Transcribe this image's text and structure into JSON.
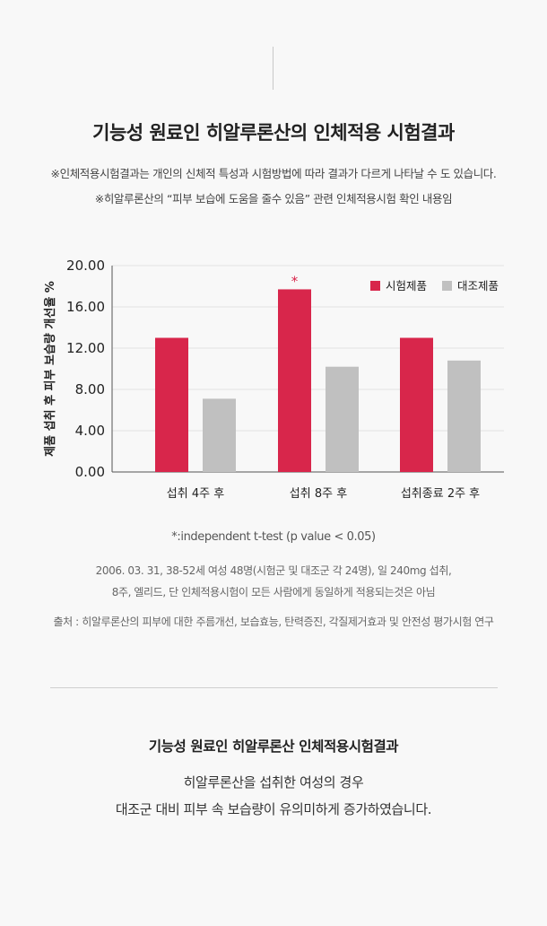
{
  "header": {
    "title": "기능성 원료인 히알루론산의 인체적용 시험결과",
    "note1": "※인체적용시험결과는 개인의 신체적 특성과 시험방법에 따라 결과가 다르게 나타날 수 도 있습니다.",
    "note2": "※히알루론산의 “피부 보습에 도움을 줄수 있음” 관련 인체적용시험 확인 내용임"
  },
  "chart_data": {
    "type": "bar",
    "categories": [
      "섭취 4주 후",
      "섭취 8주 후",
      "섭취종료 2주 후"
    ],
    "series": [
      {
        "name": "시험제품",
        "values": [
          13.0,
          17.7,
          13.0
        ],
        "color": "#d8264b"
      },
      {
        "name": "대조제품",
        "values": [
          7.1,
          10.2,
          10.8
        ],
        "color": "#c0c0c0"
      }
    ],
    "ylabel": "제품 섭취 후 피부 보습량 개선율 %",
    "xlabel": "",
    "ylim": [
      0,
      20
    ],
    "yticks": [
      "0.00",
      "4.00",
      "8.00",
      "12.00",
      "16.00",
      "20.00"
    ],
    "ytick_values": [
      0,
      4,
      8,
      12,
      16,
      20
    ],
    "grid": true,
    "legend_position": "top-right",
    "annotations": [
      {
        "category": "섭취 8주 후",
        "series": "시험제품",
        "text": "*",
        "color": "#d8264b"
      }
    ]
  },
  "footnotes": {
    "ttest": "*:independent t-test (p value < 0.05)",
    "condition1": "2006. 03. 31, 38-52세 여성 48명(시험군 및 대조군 각 24명), 일 240mg 섭취,",
    "condition2": "8주, 엘리드, 단 인체적용시험이 모든 사람에게 동일하게 적용되는것은 아님",
    "source": "출처 : 히알루론산의 피부에 대한 주름개선, 보습효능, 탄력증진, 각질제거효과 및 안전성 평가시험 연구"
  },
  "summary": {
    "title": "기능성 원료인 히알루론산 인체적용시험결과",
    "line1": "히알루론산을 섭취한 여성의 경우",
    "line2": "대조군 대비 피부 속 보습량이 유의미하게 증가하였습니다."
  }
}
